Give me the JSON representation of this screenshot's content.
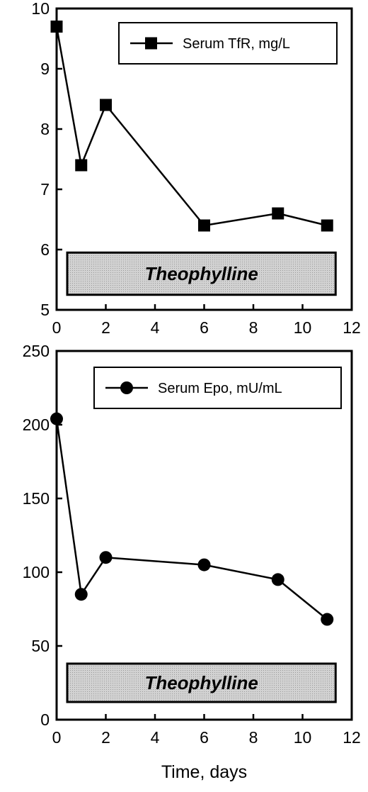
{
  "chart_data": [
    {
      "type": "line",
      "title": "",
      "xlabel": "",
      "ylabel": "",
      "xlim": [
        0,
        12
      ],
      "ylim": [
        5,
        10
      ],
      "x_ticks": [
        0,
        2,
        4,
        6,
        8,
        10,
        12
      ],
      "y_ticks": [
        5,
        6,
        7,
        8,
        9,
        10
      ],
      "grid": false,
      "legend_position": "top-right",
      "marker": "square",
      "series": [
        {
          "name": "Serum TfR, mg/L",
          "x": [
            0,
            1,
            2,
            6,
            9,
            11
          ],
          "y": [
            9.7,
            7.4,
            8.4,
            6.4,
            6.6,
            6.4
          ]
        }
      ],
      "annotation": {
        "text": "Theophylline",
        "x_range": [
          0,
          11
        ],
        "y_range": [
          5.25,
          5.95
        ]
      }
    },
    {
      "type": "line",
      "title": "",
      "xlabel": "Time, days",
      "ylabel": "",
      "xlim": [
        0,
        12
      ],
      "ylim": [
        0,
        250
      ],
      "x_ticks": [
        0,
        2,
        4,
        6,
        8,
        10,
        12
      ],
      "y_ticks": [
        0,
        50,
        100,
        150,
        200,
        250
      ],
      "grid": false,
      "legend_position": "top-right",
      "marker": "circle",
      "series": [
        {
          "name": "Serum Epo, mU/mL",
          "x": [
            0,
            1,
            2,
            6,
            9,
            11
          ],
          "y": [
            204,
            85,
            110,
            105,
            95,
            68
          ]
        }
      ],
      "annotation": {
        "text": "Theophylline",
        "x_range": [
          0,
          11
        ],
        "y_range": [
          12,
          38
        ]
      }
    }
  ]
}
